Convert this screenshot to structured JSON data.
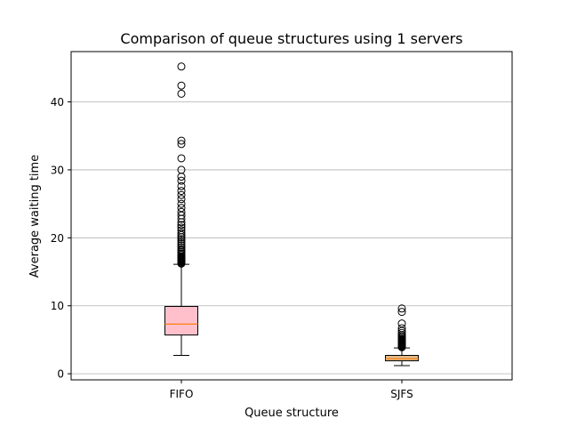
{
  "chart_data": {
    "type": "boxplot",
    "title": "Comparison of queue structures using 1 servers",
    "xlabel": "Queue structure",
    "ylabel": "Average waiting time",
    "categories": [
      "FIFO",
      "SJFS"
    ],
    "ylim": [
      -0.9,
      47.4
    ],
    "yticks": [
      0,
      10,
      20,
      30,
      40
    ],
    "grid": "y",
    "boxes": [
      {
        "name": "FIFO",
        "whisker_low": 2.7,
        "q1": 5.7,
        "median": 7.3,
        "q3": 9.9,
        "whisker_high": 16.1,
        "box_color": "#ffc0cb",
        "outliers": [
          16.2,
          16.3,
          16.4,
          16.5,
          16.6,
          16.7,
          16.8,
          16.9,
          17.0,
          17.1,
          17.2,
          17.3,
          17.5,
          17.7,
          17.9,
          18.1,
          18.3,
          18.6,
          18.9,
          19.2,
          19.5,
          19.8,
          20.1,
          20.4,
          20.7,
          21.1,
          21.5,
          21.9,
          22.3,
          22.8,
          23.3,
          23.8,
          24.4,
          25.0,
          25.7,
          26.3,
          26.9,
          27.6,
          28.4,
          29.0,
          30.0,
          31.7,
          33.8,
          34.3,
          41.2,
          42.4,
          45.2
        ]
      },
      {
        "name": "SJFS",
        "whisker_low": 1.2,
        "q1": 1.9,
        "median": 2.2,
        "q3": 2.7,
        "whisker_high": 3.8,
        "box_color": "#deb887",
        "outliers": [
          3.9,
          4.0,
          4.1,
          4.2,
          4.3,
          4.4,
          4.5,
          4.6,
          4.7,
          4.8,
          4.9,
          5.0,
          5.1,
          5.3,
          5.5,
          5.7,
          6.0,
          6.3,
          6.7,
          7.4,
          9.1,
          9.6
        ]
      }
    ],
    "median_color": "#ff7f0e",
    "grid_color": "#b0b0b0"
  }
}
